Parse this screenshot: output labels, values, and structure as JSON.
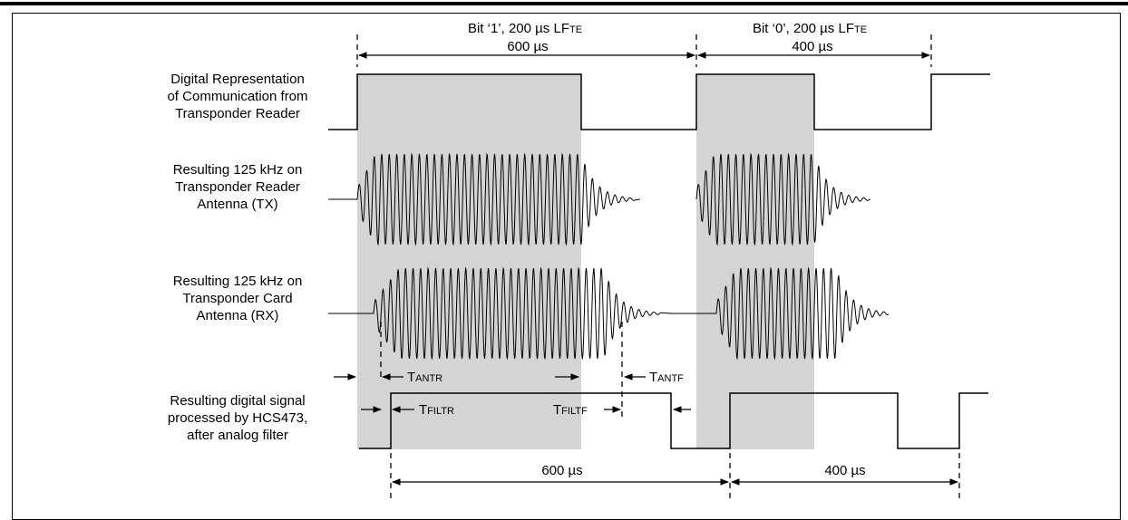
{
  "signals": [
    {
      "label": [
        "Digital Representation",
        "of Communication from",
        "Transponder Reader"
      ]
    },
    {
      "label": [
        "Resulting 125 kHz on",
        "Transponder Reader",
        "Antenna (TX)"
      ]
    },
    {
      "label": [
        "Resulting 125 kHz on",
        "Transponder Card",
        "Antenna (RX)"
      ]
    },
    {
      "label": [
        "Resulting digital signal",
        "processed by HCS473,",
        "after analog filter"
      ]
    }
  ],
  "top_dims": [
    {
      "line1_pre": "Bit ‘1’, 200 ",
      "unit": "µs",
      "line1_post": " LF",
      "sub": "TE",
      "line2_num": "600 ",
      "line2_unit": "µs"
    },
    {
      "line1_pre": "Bit ‘0’, 200 ",
      "unit": "µs",
      "line1_post": " LF",
      "sub": "TE",
      "line2_num": "400 ",
      "line2_unit": "µs"
    }
  ],
  "bottom_dims": [
    {
      "num": "600 ",
      "unit": "µs"
    },
    {
      "num": "400 ",
      "unit": "µs"
    }
  ],
  "timing_labels": {
    "t_antr": {
      "T": "T",
      "sub": "ANTR"
    },
    "t_antf": {
      "T": "T",
      "sub": "ANTF"
    },
    "t_filtr": {
      "T": "T",
      "sub": "FILTR"
    },
    "t_filtf": {
      "T": "T",
      "sub": "FILTF"
    }
  },
  "colors": {
    "shade": "#d4d4d4",
    "line": "#000000"
  }
}
